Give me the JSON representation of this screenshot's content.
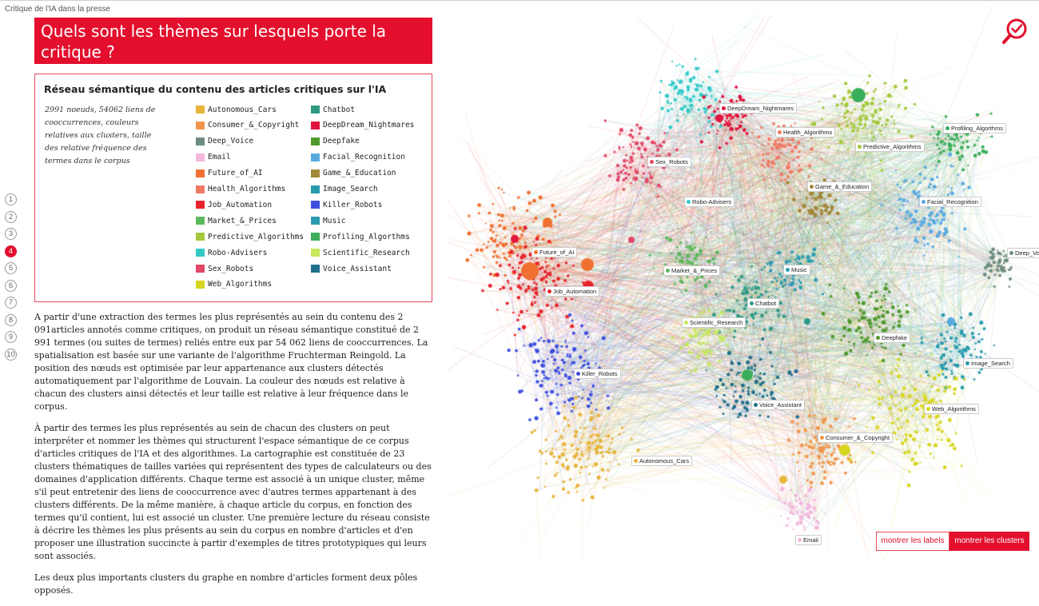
{
  "doc_title": "Critique de l'IA dans la presse",
  "heading": "Quels sont les thèmes sur lesquels porte la critique ?",
  "legend": {
    "title": "Réseau sémantique du contenu des articles critiques sur l'IA",
    "description": "2991 noeuds, 54062 liens de cooccurrences, couleurs relatives aux clusters, taille des relative fréquence des termes dans le corpus",
    "col1": [
      {
        "label": "Autonomous_Cars",
        "color": "#e8b43a"
      },
      {
        "label": "Consumer_&_Copyright",
        "color": "#f0964e"
      },
      {
        "label": "Deep_Voice",
        "color": "#6e8c7e"
      },
      {
        "label": "Email",
        "color": "#f4b7de"
      },
      {
        "label": "Future_of_AI",
        "color": "#ef7030"
      },
      {
        "label": "Health_Algorithms",
        "color": "#f07a66"
      },
      {
        "label": "Job_Automation",
        "color": "#e8232c"
      },
      {
        "label": "Market_&_Prices",
        "color": "#5cb85c"
      },
      {
        "label": "Predictive_Algorithms",
        "color": "#a4c93a"
      },
      {
        "label": "Robo-Advisers",
        "color": "#33c9c9"
      },
      {
        "label": "Sex_Robots",
        "color": "#e44666"
      },
      {
        "label": "Web_Algorithms",
        "color": "#d6d61e"
      }
    ],
    "col2": [
      {
        "label": "Chatbot",
        "color": "#2f9a84"
      },
      {
        "label": "DeepDream_Nightmares",
        "color": "#e0153e"
      },
      {
        "label": "Deepfake",
        "color": "#4e9a2c"
      },
      {
        "label": "Facial_Recognition",
        "color": "#5aaae0"
      },
      {
        "label": "Game_&_Education",
        "color": "#a3883a"
      },
      {
        "label": "Image_Search",
        "color": "#2a9aae"
      },
      {
        "label": "Killer_Robots",
        "color": "#3d4fe0"
      },
      {
        "label": "Music",
        "color": "#2a9bb0"
      },
      {
        "label": "Profiling_Algorthms",
        "color": "#3aae5a"
      },
      {
        "label": "Scientific_Research",
        "color": "#c6e85a"
      },
      {
        "label": "Voice_Assistant",
        "color": "#1f6f8c"
      }
    ]
  },
  "steps": [
    "1",
    "2",
    "3",
    "4",
    "5",
    "6",
    "7",
    "8",
    "9",
    "10"
  ],
  "active_step": "4",
  "article": {
    "p1": "A partir d'une extraction des termes les plus représentés au sein du contenu des 2 091articles annotés comme critiques, on produit un réseau sémantique constitué de 2 991 termes (ou suites de termes) reliés entre eux par 54 062 liens de cooccurrences. La spatialisation est basée sur une variante de l'algorithme Fruchterman Reingold. La position des nœuds est optimisée par leur appartenance aux clusters détectés automatiquement par l'algorithme de Louvain. La couleur des nœuds est relative à chacun des clusters ainsi détectés et leur taille est relative à leur fréquence dans le corpus.",
    "p2": "À partir des termes les plus représentés au sein de chacun des clusters on peut interpréter et nommer les thèmes qui structurent l'espace sémantique de ce corpus d'articles critiques de l'IA et des algorithmes. La cartographie est constituée de 23 clusters thématiques de tailles variées qui représentent des types de calculateurs ou des domaines d'application différents. Chaque terme est associé à un unique cluster, même s'il peut entretenir des liens de cooccurrence avec d'autres termes appartenant à des clusters différents. De la même manière, à chaque article du corpus, en fonction des termes qu'il contient, lui est associé un cluster. Une première lecture du réseau consiste à décrire les thèmes les plus présents au sein du corpus en nombre d'articles et d'en proposer une illustration succincte à partir d'exemples de titres prototypiques qui leurs sont associés.",
    "p3": "Les deux plus importants clusters du graphe en nombre d'articles forment deux pôles opposés."
  },
  "graph_labels": [
    {
      "text": "DeepDream_Nightmares",
      "color": "#e0153e"
    },
    {
      "text": "Health_Algorithms",
      "color": "#f07a66"
    },
    {
      "text": "Profiling_Algorthms",
      "color": "#3aae5a"
    },
    {
      "text": "Predictive_Algorithms",
      "color": "#a4c93a"
    },
    {
      "text": "Sex_Robots",
      "color": "#e44666"
    },
    {
      "text": "Game_&_Education",
      "color": "#a3883a"
    },
    {
      "text": "Robo-Advisers",
      "color": "#33c9c9"
    },
    {
      "text": "Facial_Recognition",
      "color": "#5aaae0"
    },
    {
      "text": "Future_of_AI",
      "color": "#ef7030"
    },
    {
      "text": "Deep_Vo",
      "color": "#6e8c7e"
    },
    {
      "text": "Market_&_Prices",
      "color": "#5cb85c"
    },
    {
      "text": "Music",
      "color": "#2a9bb0"
    },
    {
      "text": "Job_Automation",
      "color": "#e8232c"
    },
    {
      "text": "Chatbot",
      "color": "#2f9a84"
    },
    {
      "text": "Scientific_Research",
      "color": "#c6e85a"
    },
    {
      "text": "Deepfake",
      "color": "#4e9a2c"
    },
    {
      "text": "Image_Search",
      "color": "#2a9aae"
    },
    {
      "text": "Killer_Robots",
      "color": "#3d4fe0"
    },
    {
      "text": "Voice_Assistant",
      "color": "#1f6f8c"
    },
    {
      "text": "Web_Algorithms",
      "color": "#d6d61e"
    },
    {
      "text": "Consumer_&_Copyright",
      "color": "#f0964e"
    },
    {
      "text": "Autonomous_Cars",
      "color": "#e8b43a"
    },
    {
      "text": "Email",
      "color": "#f4b7de"
    }
  ],
  "buttons": {
    "labels": "montrer les labels",
    "clusters": "montrer les clusters"
  },
  "search_icon": "search-check-icon",
  "accent_color": "#e30f2d"
}
